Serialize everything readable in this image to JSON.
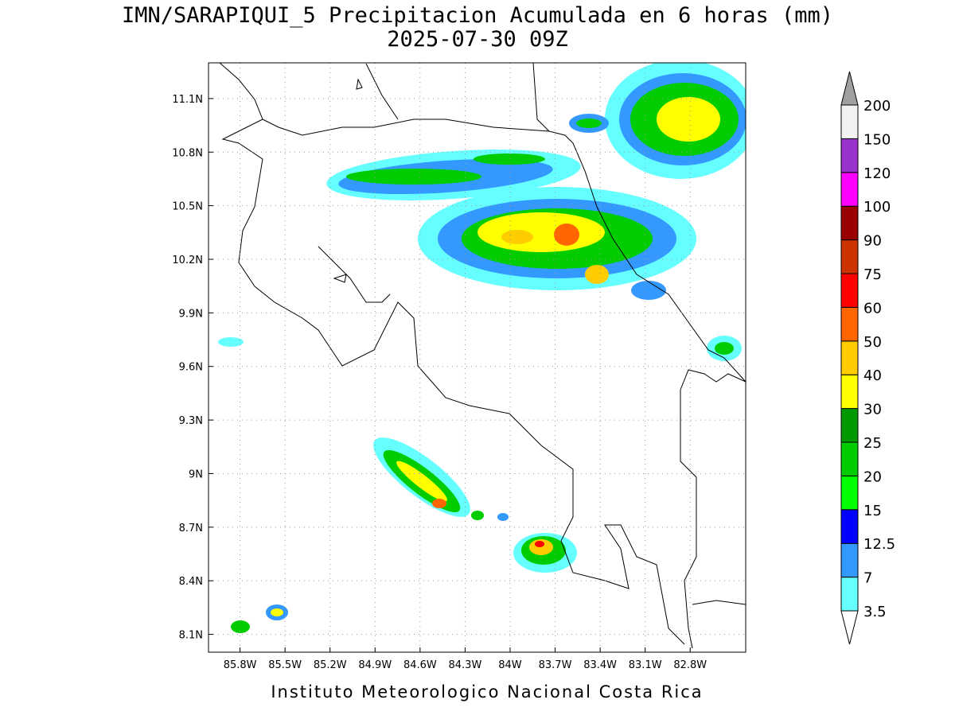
{
  "chart_data": {
    "type": "map",
    "title": "IMN/SARAPIQUI_5 Precipitacion Acumulada en 6 horas (mm)",
    "subtitle": "2025-07-30 09Z",
    "footer": "Instituto Meteorologico Nacional Costa Rica",
    "xlim": [
      -86.01,
      -82.43
    ],
    "ylim": [
      8.0,
      11.3
    ],
    "xticks": [
      {
        "value": -85.8,
        "label": "85.8W"
      },
      {
        "value": -85.5,
        "label": "85.5W"
      },
      {
        "value": -85.2,
        "label": "85.2W"
      },
      {
        "value": -84.9,
        "label": "84.9W"
      },
      {
        "value": -84.6,
        "label": "84.6W"
      },
      {
        "value": -84.3,
        "label": "84.3W"
      },
      {
        "value": -84.0,
        "label": "84W"
      },
      {
        "value": -83.7,
        "label": "83.7W"
      },
      {
        "value": -83.4,
        "label": "83.4W"
      },
      {
        "value": -83.1,
        "label": "83.1W"
      },
      {
        "value": -82.8,
        "label": "82.8W"
      }
    ],
    "yticks": [
      {
        "value": 8.1,
        "label": "8.1N"
      },
      {
        "value": 8.4,
        "label": "8.4N"
      },
      {
        "value": 8.7,
        "label": "8.7N"
      },
      {
        "value": 9.0,
        "label": "9N"
      },
      {
        "value": 9.3,
        "label": "9.3N"
      },
      {
        "value": 9.6,
        "label": "9.6N"
      },
      {
        "value": 9.9,
        "label": "9.9N"
      },
      {
        "value": 10.2,
        "label": "10.2N"
      },
      {
        "value": 10.5,
        "label": "10.5N"
      },
      {
        "value": 10.8,
        "label": "10.8N"
      },
      {
        "value": 11.1,
        "label": "11.1N"
      }
    ],
    "grid": true,
    "colorbar": {
      "levels": [
        3.5,
        7,
        12.5,
        15,
        20,
        25,
        30,
        40,
        50,
        60,
        75,
        90,
        100,
        120,
        150,
        200
      ],
      "colors": [
        "#66ffff",
        "#3399ff",
        "#0000ff",
        "#00ff00",
        "#00cc00",
        "#009900",
        "#ffff00",
        "#ffcc00",
        "#ff6600",
        "#ff0000",
        "#cc3300",
        "#990000",
        "#ff00ff",
        "#9933cc",
        "#f2f2f2"
      ],
      "under_color": "#ffffff",
      "over_color": "#a0a0a0"
    }
  }
}
